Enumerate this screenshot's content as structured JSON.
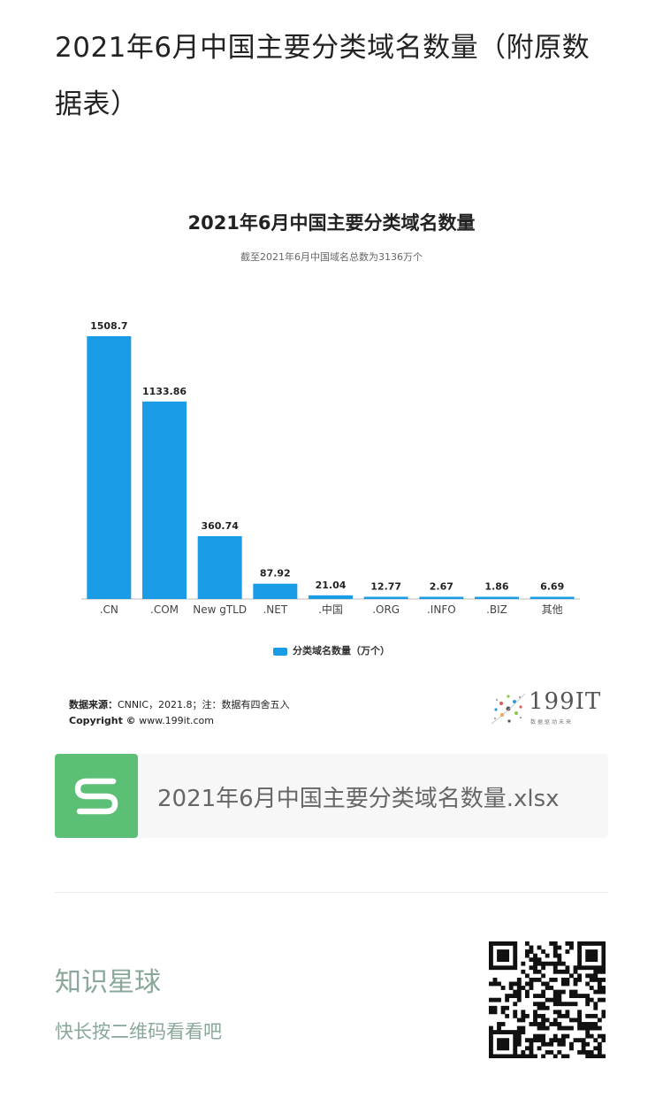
{
  "article": {
    "title": "2021年6月中国主要分类域名数量（附原数据表）"
  },
  "chart_data": {
    "type": "bar",
    "title": "2021年6月中国主要分类域名数量",
    "subtitle": "截至2021年6月中国域名总数为3136万个",
    "categories": [
      ".CN",
      ".COM",
      "New gTLD",
      ".NET",
      ".中国",
      ".ORG",
      ".INFO",
      ".BIZ",
      "其他"
    ],
    "values": [
      1508.7,
      1133.86,
      360.74,
      87.92,
      21.04,
      12.77,
      2.67,
      1.86,
      6.69
    ],
    "value_labels": [
      "1508.7",
      "1133.86",
      "360.74",
      "87.92",
      "21.04",
      "12.77",
      "2.67",
      "1.86",
      "6.69"
    ],
    "series": [
      {
        "name": "分类域名数量（万个）",
        "values": [
          1508.7,
          1133.86,
          360.74,
          87.92,
          21.04,
          12.77,
          2.67,
          1.86,
          6.69
        ]
      }
    ],
    "ylim": [
      0,
      1600
    ],
    "grid": false,
    "legend_position": "bottom",
    "bar_color": "#1a9be6"
  },
  "source": {
    "label": "数据来源：",
    "text": "CNNIC，2021.8；注：数据有四舍五入",
    "copyright_label": "Copyright ©",
    "copyright_text": "www.199it.com"
  },
  "logo": {
    "text": "199IT",
    "slogan": "数据驱动未来"
  },
  "file": {
    "icon": "s-file-icon",
    "name": "2021年6月中国主要分类域名数量.xlsx"
  },
  "footer": {
    "title": "知识星球",
    "subtitle": "快长按二维码看看吧"
  }
}
